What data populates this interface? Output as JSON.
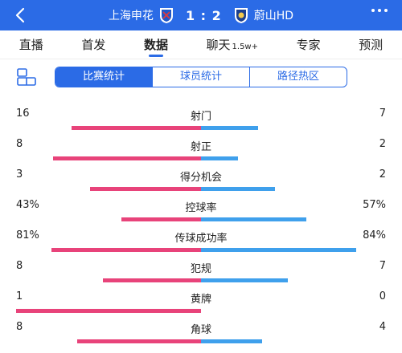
{
  "header": {
    "home_team": "上海申花",
    "score": "1 : 2",
    "away_team": "蔚山HD",
    "colors": {
      "bg": "#2b6be6"
    }
  },
  "tabs": [
    {
      "label": "直播",
      "sub": ""
    },
    {
      "label": "首发",
      "sub": ""
    },
    {
      "label": "数据",
      "sub": ""
    },
    {
      "label": "聊天",
      "sub": "1.5w+"
    },
    {
      "label": "专家",
      "sub": ""
    },
    {
      "label": "预测",
      "sub": ""
    }
  ],
  "segments": [
    "比赛统计",
    "球员统计",
    "路径热区"
  ],
  "stats": [
    {
      "label": "射门",
      "left": "16",
      "right": "7",
      "left_frac": 0.7,
      "right_frac": 0.31
    },
    {
      "label": "射正",
      "left": "8",
      "right": "2",
      "left_frac": 0.8,
      "right_frac": 0.2
    },
    {
      "label": "得分机会",
      "left": "3",
      "right": "2",
      "left_frac": 0.6,
      "right_frac": 0.4
    },
    {
      "label": "控球率",
      "left": "43%",
      "right": "57%",
      "left_frac": 0.43,
      "right_frac": 0.57
    },
    {
      "label": "传球成功率",
      "left": "81%",
      "right": "84%",
      "left_frac": 0.81,
      "right_frac": 0.84
    },
    {
      "label": "犯规",
      "left": "8",
      "right": "7",
      "left_frac": 0.53,
      "right_frac": 0.47
    },
    {
      "label": "黄牌",
      "left": "1",
      "right": "0",
      "left_frac": 1.0,
      "right_frac": 0.0
    },
    {
      "label": "角球",
      "left": "8",
      "right": "4",
      "left_frac": 0.67,
      "right_frac": 0.33
    }
  ],
  "colors": {
    "home": "#e8437a",
    "away": "#3fa0ec",
    "accent": "#2b6be6"
  }
}
